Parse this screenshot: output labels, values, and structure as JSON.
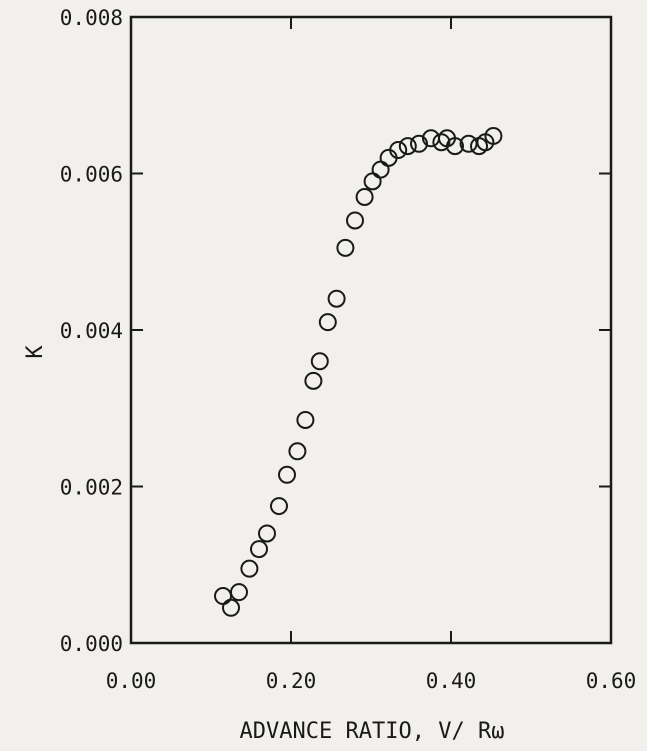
{
  "chart_data": {
    "type": "scatter",
    "title": "",
    "xlabel": "ADVANCE RATIO, V/ Rω",
    "ylabel": "K",
    "xlim": [
      0.0,
      0.6
    ],
    "ylim": [
      0.0,
      0.008
    ],
    "x_ticks": [
      "0.00",
      "0.20",
      "0.40",
      "0.60"
    ],
    "x_tick_values": [
      0.0,
      0.2,
      0.4,
      0.6
    ],
    "y_ticks": [
      "0.000",
      "0.002",
      "0.004",
      "0.006",
      "0.008"
    ],
    "y_tick_values": [
      0.0,
      0.002,
      0.004,
      0.006,
      0.008
    ],
    "grid": false,
    "marker": "open-circle",
    "series": [
      {
        "x": [
          0.115,
          0.125,
          0.135,
          0.148,
          0.16,
          0.17,
          0.185,
          0.195,
          0.208,
          0.218,
          0.228,
          0.236,
          0.246,
          0.257,
          0.268,
          0.28,
          0.292,
          0.302,
          0.312,
          0.322,
          0.334,
          0.346,
          0.36,
          0.375,
          0.388,
          0.395,
          0.405,
          0.422,
          0.435,
          0.443,
          0.453
        ],
        "y": [
          0.0006,
          0.00045,
          0.00065,
          0.00095,
          0.0012,
          0.0014,
          0.00175,
          0.00215,
          0.00245,
          0.00285,
          0.00335,
          0.0036,
          0.0041,
          0.0044,
          0.00505,
          0.0054,
          0.0057,
          0.0059,
          0.00605,
          0.0062,
          0.0063,
          0.00635,
          0.00638,
          0.00645,
          0.0064,
          0.00645,
          0.00635,
          0.00638,
          0.00635,
          0.0064,
          0.00648
        ]
      }
    ]
  }
}
